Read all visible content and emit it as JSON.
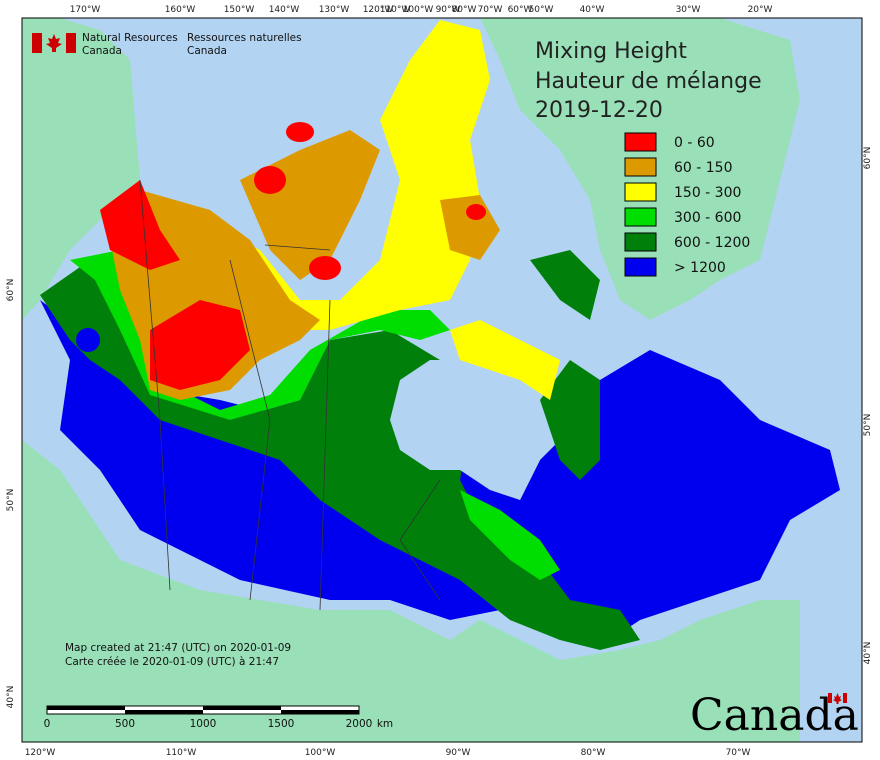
{
  "title": {
    "line1": "Mixing Height",
    "line2": "Hauteur de mélange",
    "date": "2019-12-20"
  },
  "agency": {
    "en_line1": "Natural Resources",
    "en_line2": "Canada",
    "fr_line1": "Ressources naturelles",
    "fr_line2": "Canada"
  },
  "legend": [
    {
      "label": "0 - 60",
      "color": "#ff0000"
    },
    {
      "label": "60 - 150",
      "color": "#dd9a00"
    },
    {
      "label": "150 - 300",
      "color": "#ffff00"
    },
    {
      "label": "300 - 600",
      "color": "#00dd00"
    },
    {
      "label": "600 - 1200",
      "color": "#00800a"
    },
    {
      "label": "> 1200",
      "color": "#0000ee"
    }
  ],
  "colors": {
    "water": "#b3d3f2",
    "land_outside": "#99e0b8",
    "boundary": "#333333"
  },
  "created": {
    "en": "Map created at 21:47 (UTC) on 2020-01-09",
    "fr": "Carte créée le 2020-01-09 (UTC) à 21:47"
  },
  "scalebar": {
    "ticks": [
      "0",
      "500",
      "1000",
      "1500",
      "2000"
    ],
    "unit": "km"
  },
  "wordmark": "Canada",
  "top_ticks": [
    "170°W",
    "160°W",
    "150°W",
    "140°W",
    "130°W",
    "120°W",
    "110°W",
    "100°W",
    "90°W",
    "80°W",
    "70°W",
    "60°W",
    "50°W",
    "40°W",
    "30°W",
    "20°W"
  ],
  "bottom_ticks": [
    "120°W",
    "110°W",
    "100°W",
    "90°W",
    "80°W",
    "70°W"
  ],
  "left_ticks": [
    "60°N",
    "50°N",
    "40°N"
  ],
  "right_ticks": [
    "60°N",
    "50°N",
    "40°N"
  ]
}
